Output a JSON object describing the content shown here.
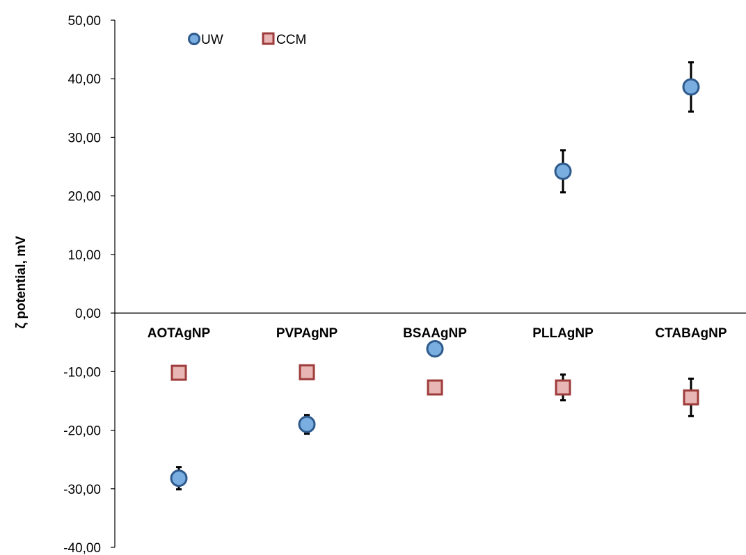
{
  "chart_data": {
    "type": "scatter",
    "title": "",
    "xlabel": "",
    "ylabel": "ζ potential, mV",
    "ylim": [
      -40,
      50
    ],
    "yticks": [
      "50,00",
      "40,00",
      "30,00",
      "20,00",
      "10,00",
      "0,00",
      "-10,00",
      "-20,00",
      "-30,00",
      "-40,00"
    ],
    "ytick_values": [
      50,
      40,
      30,
      20,
      10,
      0,
      -10,
      -20,
      -30,
      -40
    ],
    "categories": [
      "AOTAgNP",
      "PVPAgNP",
      "BSAAgNP",
      "PLLAgNP",
      "CTABAgNP"
    ],
    "grid": false,
    "legend_position": "top-left",
    "series": [
      {
        "name": "UW",
        "marker": "circle",
        "fill": "#7aaee0",
        "stroke": "#2e5a8c",
        "values": [
          -28.2,
          -19.0,
          -6.1,
          24.2,
          38.6
        ],
        "errors": [
          1.9,
          1.6,
          0.0,
          3.6,
          4.2
        ]
      },
      {
        "name": "CCM",
        "marker": "square",
        "fill": "#e8b6b4",
        "stroke": "#9e3b3b",
        "values": [
          -10.2,
          -10.1,
          -12.7,
          -12.7,
          -14.4
        ],
        "errors": [
          0.0,
          0.0,
          0.0,
          2.2,
          3.2
        ]
      }
    ]
  }
}
